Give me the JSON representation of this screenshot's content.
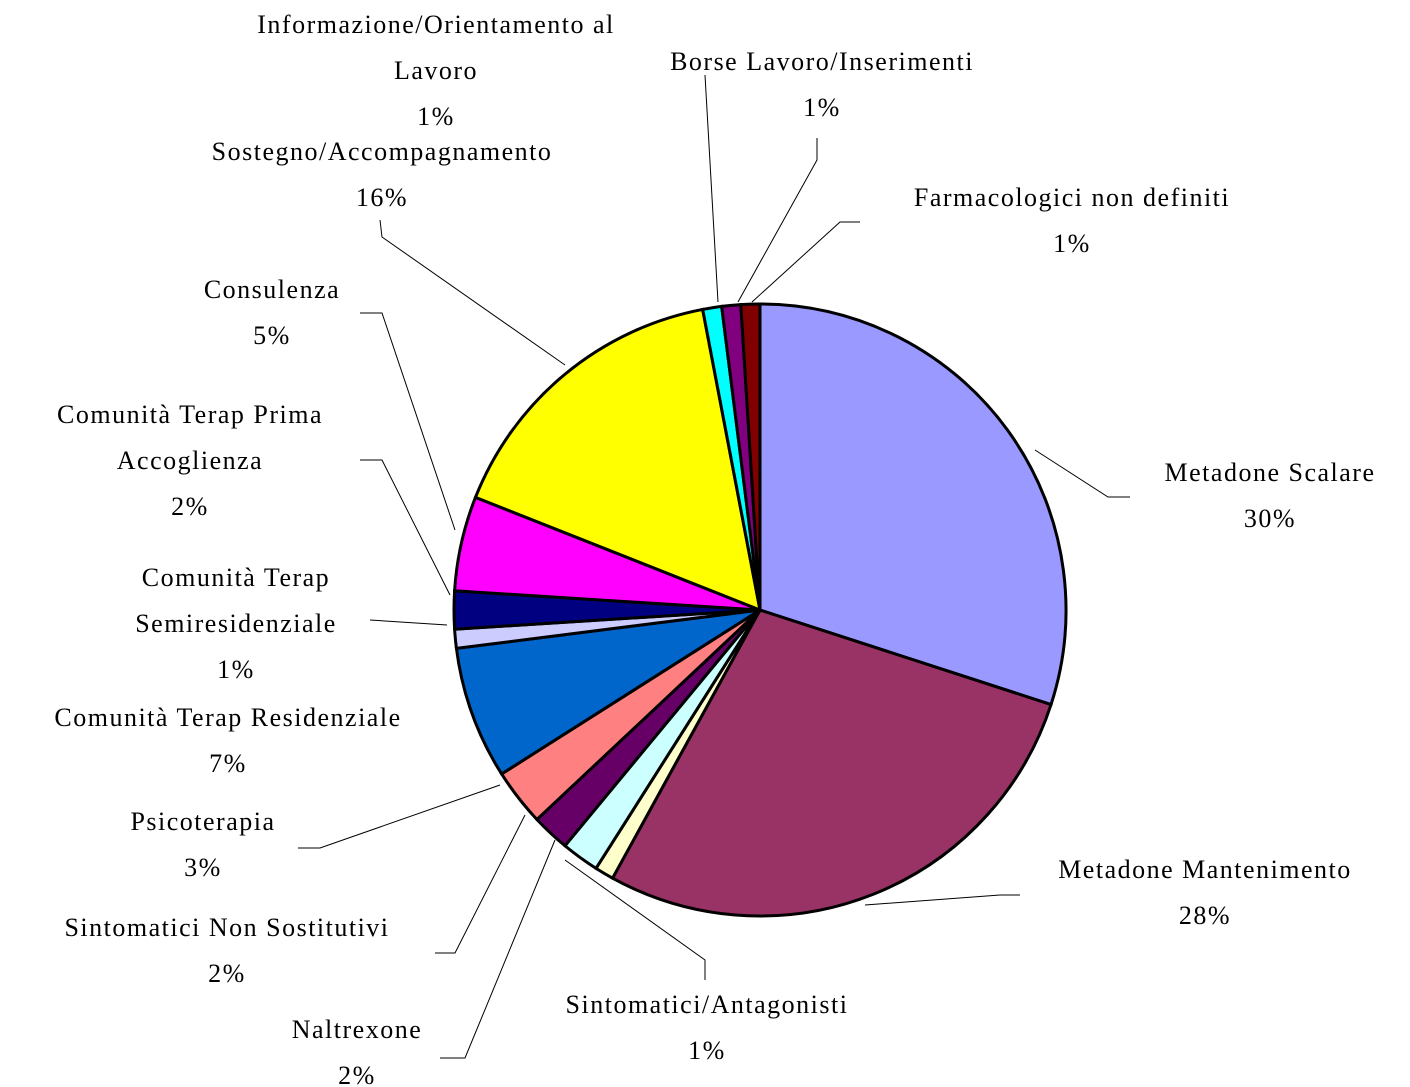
{
  "chart_data": {
    "type": "pie",
    "categories": [
      "Metadone Scalare",
      "Metadone Mantenimento",
      "Sintomatici/Antagonisti",
      "Naltrexone",
      "Sintomatici Non Sostitutivi",
      "Psicoterapia",
      "Comunità Terap Residenziale",
      "Comunità Terap Semiresidenziale",
      "Comunità Terap Prima Accoglienza",
      "Consulenza",
      "Sostegno/Accompagnamento",
      "Informazione/Orientamento al Lavoro",
      "Borse Lavoro/Inserimenti",
      "Farmacologici non definiti"
    ],
    "values": [
      30,
      28,
      1,
      2,
      2,
      3,
      7,
      1,
      2,
      5,
      16,
      1,
      1,
      1
    ],
    "value_labels": [
      "30%",
      "28%",
      "1%",
      "2%",
      "2%",
      "3%",
      "7%",
      "1%",
      "2%",
      "5%",
      "16%",
      "1%",
      "1%",
      "1%"
    ],
    "colors": [
      "#9999ff",
      "#993366",
      "#ffffcc",
      "#ccffff",
      "#660066",
      "#ff8080",
      "#0066cc",
      "#ccccff",
      "#000080",
      "#ff00ff",
      "#ffff00",
      "#00ffff",
      "#800080",
      "#800000"
    ]
  }
}
